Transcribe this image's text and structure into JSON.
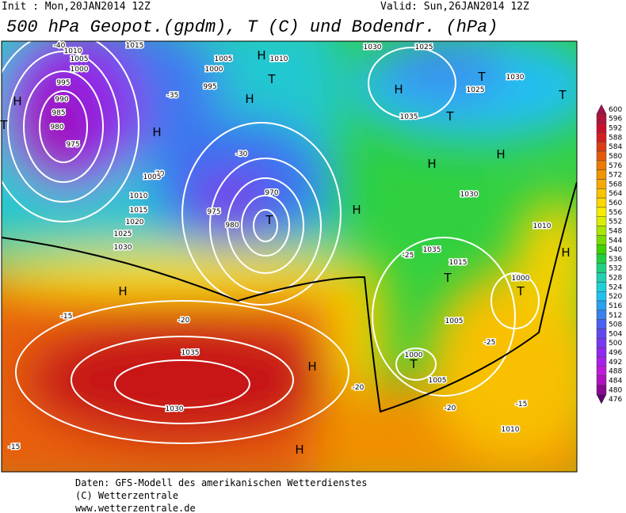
{
  "header": {
    "init": "Init : Mon,20JAN2014 12Z",
    "valid": "Valid: Sun,26JAN2014 12Z",
    "title": "500 hPa Geopot.(gpdm), T (C) und Bodendr. (hPa)"
  },
  "colorbar": {
    "labels": [
      600,
      596,
      592,
      588,
      584,
      580,
      576,
      572,
      568,
      564,
      560,
      556,
      552,
      548,
      544,
      540,
      536,
      532,
      528,
      524,
      520,
      516,
      512,
      508,
      504,
      500,
      496,
      492,
      488,
      484,
      480,
      476
    ],
    "colors": [
      "#a0104a",
      "#b0143c",
      "#c8102a",
      "#d22020",
      "#dc3c14",
      "#e45a0a",
      "#ec7a00",
      "#f09400",
      "#f4aa00",
      "#f8c400",
      "#fcd800",
      "#f8ec00",
      "#d8f000",
      "#a8e600",
      "#78dc00",
      "#40d200",
      "#20d040",
      "#20d080",
      "#20d0b0",
      "#20d0d8",
      "#20c0f0",
      "#2aa0f0",
      "#3a80f0",
      "#4a60f0",
      "#6048f0",
      "#7838f0",
      "#9028f0",
      "#a820e8",
      "#c018d8",
      "#b010c0",
      "#8a0890",
      "#600070"
    ]
  },
  "map_labels": [
    "1010",
    "1005",
    "1000",
    "995",
    "990",
    "985",
    "980",
    "975",
    "H",
    "T",
    "H",
    "1015",
    "1005",
    "H",
    "1010",
    "T",
    "1000",
    "995",
    "H",
    "-35",
    "-30",
    "1030",
    "1025",
    "T",
    "1025",
    "H",
    "T",
    "1030",
    "1035",
    "T",
    "H",
    "H",
    "1030",
    "-40",
    "980",
    "975",
    "T",
    "970",
    "-30",
    "1005",
    "1010",
    "1015",
    "1020",
    "1025",
    "1030",
    "-25",
    "H",
    "1035",
    "H",
    "1035",
    "1030",
    "-15",
    "-20",
    "-15",
    "-20",
    "H",
    "H",
    "1015",
    "T",
    "1000",
    "T",
    "1005",
    "1000",
    "T",
    "1005",
    "-25",
    "1010",
    "-15",
    "-20",
    "1010",
    "H"
  ],
  "footer": [
    "Daten: GFS-Modell des amerikanischen Wetterdienstes",
    "(C) Wetterzentrale",
    "www.wetterzentrale.de"
  ]
}
